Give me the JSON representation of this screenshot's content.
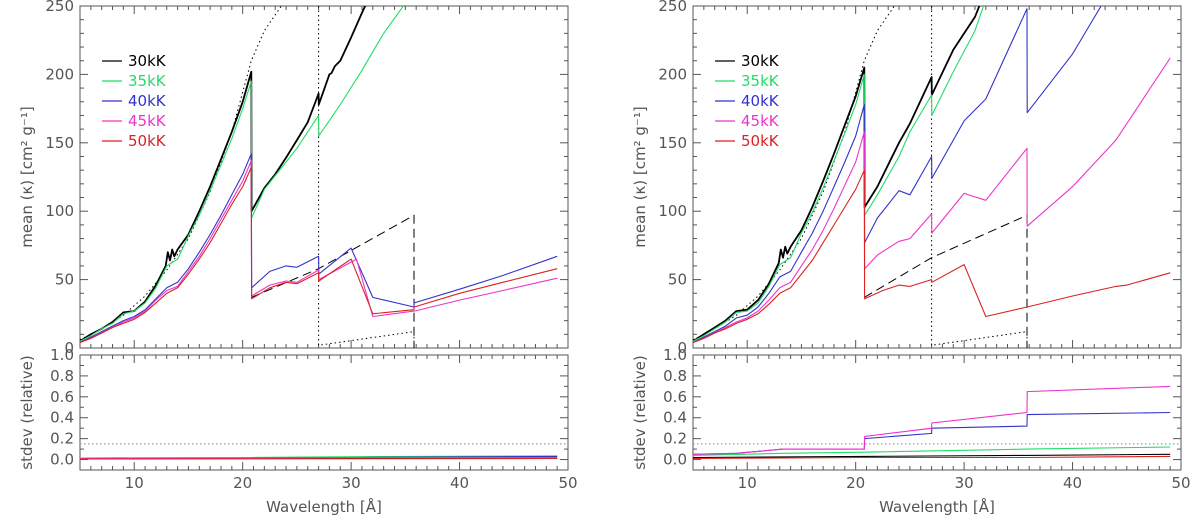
{
  "chart_data": [
    {
      "type": "line",
      "panel": "left",
      "xlabel": "Wavelength [Å]",
      "ylabel": "mean (κ) [cm² g⁻¹]",
      "xlim": [
        5,
        50
      ],
      "ylim": [
        0,
        250
      ],
      "xticks": [
        10,
        20,
        30,
        40,
        50
      ],
      "yticks": [
        0,
        50,
        100,
        150,
        200,
        250
      ],
      "legend_position": "top-left",
      "series": [
        {
          "name": "30kK",
          "color": "#000000",
          "x": [
            5,
            6,
            7,
            8,
            9,
            10,
            11,
            12,
            12.9,
            13.1,
            13.3,
            13.5,
            13.7,
            14,
            15,
            16,
            17,
            18,
            19,
            20,
            20.8,
            20.82,
            22,
            23,
            24,
            25,
            26,
            27,
            27.02,
            28,
            28.2,
            28.5,
            29,
            30,
            31,
            32
          ],
          "y": [
            5,
            10,
            14,
            19,
            26,
            27,
            34,
            46,
            60,
            70,
            64,
            72,
            67,
            72,
            83,
            100,
            118,
            138,
            158,
            180,
            202,
            100,
            117,
            127,
            139,
            152,
            165,
            186,
            178,
            200,
            201,
            206,
            210,
            227,
            245,
            262
          ]
        },
        {
          "name": "35kK",
          "color": "#22dd66",
          "x": [
            5,
            6,
            7,
            8,
            9,
            10,
            11,
            12,
            13,
            14,
            15,
            16,
            17,
            18,
            19,
            20,
            20.8,
            20.82,
            22,
            23,
            25,
            27,
            27.02,
            29,
            31,
            33,
            35,
            36
          ],
          "y": [
            5,
            9,
            14,
            18,
            25,
            27,
            33,
            44,
            60,
            65,
            82,
            97,
            115,
            134,
            153,
            175,
            195,
            95,
            116,
            126,
            146,
            170,
            155,
            178,
            203,
            230,
            252,
            262
          ]
        },
        {
          "name": "40kK",
          "color": "#3333cc",
          "x": [
            5,
            6,
            7,
            8,
            9,
            10,
            11,
            12,
            13,
            14,
            15,
            16,
            17,
            18,
            19,
            20,
            20.8,
            20.82,
            22.5,
            24,
            25,
            27,
            27.02,
            30,
            32,
            35.8,
            35.82,
            40,
            44,
            49
          ],
          "y": [
            4,
            8,
            12,
            16,
            20,
            23,
            28,
            36,
            44,
            48,
            58,
            70,
            83,
            97,
            112,
            127,
            142,
            44,
            56,
            60,
            59,
            67,
            54,
            73,
            37,
            30,
            33,
            43,
            53,
            67
          ]
        },
        {
          "name": "45kK",
          "color": "#ee33cc",
          "x": [
            5,
            6,
            7,
            8,
            9,
            10,
            11,
            12,
            13,
            14,
            15,
            16,
            17,
            18,
            19,
            20,
            20.8,
            20.82,
            22.5,
            24,
            25,
            27,
            27.02,
            30.5,
            32,
            35.8,
            35.82,
            40,
            44,
            49
          ],
          "y": [
            4,
            7,
            11,
            15,
            19,
            22,
            27,
            35,
            42,
            45,
            56,
            67,
            80,
            94,
            108,
            122,
            137,
            38,
            46,
            49,
            48,
            57,
            50,
            65,
            23,
            27,
            27,
            35,
            42,
            51
          ]
        },
        {
          "name": "50kK",
          "color": "#dd2222",
          "x": [
            5,
            6,
            7,
            8,
            9,
            10,
            11,
            12,
            13,
            14,
            15,
            16,
            17,
            18,
            19,
            20,
            20.8,
            20.82,
            22.5,
            24,
            25,
            27,
            27.02,
            30,
            32,
            35.8,
            35.82,
            40,
            44,
            49
          ],
          "y": [
            4,
            7,
            11,
            15,
            18,
            21,
            26,
            33,
            40,
            44,
            54,
            65,
            77,
            91,
            105,
            118,
            132,
            36,
            44,
            48,
            47,
            55,
            49,
            65,
            25,
            28,
            30,
            40,
            48,
            58
          ]
        }
      ],
      "reference_lines": [
        {
          "style": "dotted",
          "color": "#000000",
          "x": [
            5,
            7,
            9,
            11,
            13,
            15,
            17,
            19,
            20.8,
            22,
            24,
            26,
            27
          ],
          "y": [
            6,
            14,
            24,
            38,
            57,
            80,
            114,
            158,
            210,
            232,
            255,
            278,
            290
          ]
        },
        {
          "style": "dotted",
          "color": "#000000",
          "x": [
            27,
            27,
            35.8,
            35.8
          ],
          "y": [
            250,
            2,
            12,
            0
          ]
        },
        {
          "style": "dashed",
          "color": "#000000",
          "x": [
            20.8,
            27,
            35.8,
            35.8
          ],
          "y": [
            37,
            58,
            97,
            0
          ]
        }
      ],
      "stdev_panel": {
        "ylabel": "stdev (relative)",
        "ylim": [
          -0.1,
          1.0
        ],
        "yticks": [
          0.0,
          0.2,
          0.4,
          0.6,
          0.8,
          1.0
        ],
        "threshold": 0.15,
        "series": [
          {
            "name": "30kK",
            "color": "#000000",
            "x": [
              5,
              49
            ],
            "y": [
              0.01,
              0.01
            ]
          },
          {
            "name": "35kK",
            "color": "#22dd66",
            "x": [
              5,
              20.8,
              27,
              35.8,
              49
            ],
            "y": [
              0.015,
              0.02,
              0.025,
              0.03,
              0.035
            ]
          },
          {
            "name": "40kK",
            "color": "#3333cc",
            "x": [
              5,
              20.8,
              30,
              49
            ],
            "y": [
              0.01,
              0.015,
              0.02,
              0.03
            ]
          },
          {
            "name": "45kK",
            "color": "#ee33cc",
            "x": [
              5,
              20.8,
              30,
              49
            ],
            "y": [
              0.01,
              0.015,
              0.02,
              0.02
            ]
          },
          {
            "name": "50kK",
            "color": "#dd2222",
            "x": [
              5,
              49
            ],
            "y": [
              0.005,
              0.01
            ]
          }
        ]
      }
    },
    {
      "type": "line",
      "panel": "right",
      "xlabel": "Wavelength [Å]",
      "ylabel": "mean (κ) [cm² g⁻¹]",
      "xlim": [
        5,
        50
      ],
      "ylim": [
        0,
        250
      ],
      "xticks": [
        10,
        20,
        30,
        40,
        50
      ],
      "yticks": [
        0,
        50,
        100,
        150,
        200,
        250
      ],
      "legend_position": "top-left",
      "series": [
        {
          "name": "30kK",
          "color": "#000000",
          "x": [
            5,
            6,
            7,
            8,
            9,
            10,
            11,
            12,
            12.9,
            13.1,
            13.3,
            13.5,
            13.7,
            14,
            15,
            16,
            17,
            18,
            19,
            20,
            20.8,
            20.82,
            22,
            24,
            25,
            27,
            27.02,
            29,
            31,
            32
          ],
          "y": [
            5,
            10,
            15,
            20,
            27,
            28,
            35,
            47,
            62,
            72,
            66,
            74,
            69,
            74,
            86,
            103,
            122,
            142,
            163,
            184,
            205,
            103,
            118,
            150,
            164,
            198,
            185,
            218,
            242,
            262
          ]
        },
        {
          "name": "35kK",
          "color": "#22dd66",
          "x": [
            5,
            6,
            7,
            8,
            9,
            10,
            11,
            12,
            13,
            14,
            15,
            16,
            17,
            18,
            19,
            20,
            20.8,
            20.82,
            22,
            24,
            25,
            27,
            27.02,
            29,
            31,
            32
          ],
          "y": [
            5,
            9,
            14,
            19,
            26,
            27,
            33,
            45,
            61,
            66,
            84,
            99,
            117,
            137,
            157,
            178,
            200,
            97,
            112,
            140,
            158,
            185,
            170,
            202,
            232,
            255
          ]
        },
        {
          "name": "40kK",
          "color": "#3333cc",
          "x": [
            5,
            6,
            7,
            8,
            9,
            10,
            11,
            12,
            13,
            14,
            15,
            16,
            17,
            18,
            19,
            20,
            20.8,
            20.82,
            22,
            24,
            25,
            27,
            27.02,
            30,
            32,
            35.8,
            35.82,
            40,
            43
          ],
          "y": [
            4,
            8,
            12,
            16,
            22,
            24,
            30,
            40,
            52,
            56,
            70,
            84,
            100,
            118,
            136,
            155,
            178,
            77,
            95,
            115,
            112,
            140,
            124,
            166,
            182,
            248,
            172,
            215,
            255
          ]
        },
        {
          "name": "45kK",
          "color": "#ee33cc",
          "x": [
            5,
            6,
            7,
            8,
            9,
            10,
            11,
            12,
            13,
            14,
            15,
            16,
            17,
            18,
            19,
            20,
            20.8,
            20.82,
            22,
            24,
            25,
            27,
            27.02,
            30,
            32,
            35.8,
            35.82,
            40,
            44,
            49
          ],
          "y": [
            4,
            7,
            11,
            15,
            19,
            22,
            27,
            35,
            44,
            48,
            60,
            72,
            86,
            102,
            119,
            136,
            158,
            58,
            68,
            78,
            80,
            98,
            84,
            113,
            108,
            146,
            89,
            118,
            152,
            212
          ]
        },
        {
          "name": "50kK",
          "color": "#dd2222",
          "x": [
            5,
            6,
            7,
            8,
            9,
            10,
            11,
            12,
            13,
            14,
            15,
            16,
            17,
            18,
            19,
            20,
            20.8,
            20.82,
            22.5,
            24,
            25,
            27,
            27.02,
            30,
            32,
            35.8,
            35.82,
            40,
            44,
            45,
            49
          ],
          "y": [
            4,
            7,
            11,
            14,
            18,
            21,
            25,
            32,
            40,
            44,
            54,
            64,
            77,
            90,
            103,
            116,
            130,
            36,
            42,
            46,
            45,
            50,
            48,
            61,
            23,
            30,
            30,
            38,
            45,
            46,
            55
          ]
        }
      ],
      "reference_lines": [
        {
          "style": "dotted",
          "color": "#000000",
          "x": [
            5,
            7,
            9,
            11,
            13,
            15,
            17,
            19,
            20.8,
            22,
            24,
            26,
            27
          ],
          "y": [
            6,
            14,
            24,
            38,
            57,
            80,
            114,
            158,
            210,
            232,
            255,
            278,
            290
          ]
        },
        {
          "style": "dotted",
          "color": "#000000",
          "x": [
            27,
            27,
            35.8,
            35.8
          ],
          "y": [
            250,
            2,
            12,
            0
          ]
        },
        {
          "style": "dashed",
          "color": "#000000",
          "x": [
            20.8,
            27,
            35.8,
            35.8
          ],
          "y": [
            37,
            66,
            97,
            0
          ]
        }
      ],
      "stdev_panel": {
        "ylabel": "stdev (relative)",
        "ylim": [
          -0.1,
          1.0
        ],
        "yticks": [
          0.0,
          0.2,
          0.4,
          0.6,
          0.8,
          1.0
        ],
        "threshold": 0.15,
        "series": [
          {
            "name": "30kK",
            "color": "#000000",
            "x": [
              5,
              20.8,
              35.8,
              49
            ],
            "y": [
              0.02,
              0.03,
              0.04,
              0.05
            ]
          },
          {
            "name": "35kK",
            "color": "#22dd66",
            "x": [
              5,
              13.3,
              20.8,
              35.8,
              49
            ],
            "y": [
              0.04,
              0.06,
              0.07,
              0.1,
              0.12
            ]
          },
          {
            "name": "40kK",
            "color": "#3333cc",
            "x": [
              5,
              9,
              13.3,
              20.8,
              20.82,
              27,
              27.02,
              35.8,
              35.82,
              49
            ],
            "y": [
              0.05,
              0.06,
              0.1,
              0.1,
              0.2,
              0.25,
              0.3,
              0.32,
              0.43,
              0.45
            ]
          },
          {
            "name": "45kK",
            "color": "#ee33cc",
            "x": [
              5,
              9,
              13.3,
              20.8,
              20.82,
              27,
              27.02,
              35.8,
              35.82,
              49
            ],
            "y": [
              0.05,
              0.06,
              0.1,
              0.1,
              0.22,
              0.3,
              0.35,
              0.45,
              0.65,
              0.7
            ]
          },
          {
            "name": "50kK",
            "color": "#dd2222",
            "x": [
              5,
              20.8,
              35.8,
              49
            ],
            "y": [
              0.01,
              0.02,
              0.02,
              0.03
            ]
          }
        ]
      }
    }
  ]
}
